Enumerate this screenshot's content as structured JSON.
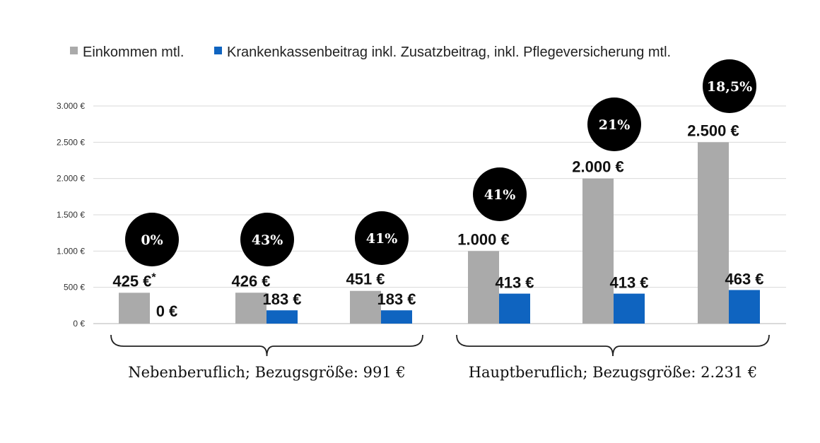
{
  "chart_data": {
    "type": "bar",
    "categories": [
      "",
      "",
      "",
      "",
      "",
      ""
    ],
    "series": [
      {
        "name": "Einkommen mtl.",
        "color": "#aaaaaa",
        "values": [
          425,
          426,
          451,
          1000,
          2000,
          2500
        ],
        "labels": [
          "425 €",
          "426 €",
          "451 €",
          "1.000 €",
          "2.000 €",
          "2.500 €"
        ]
      },
      {
        "name": "Krankenkassenbeitrag inkl. Zusatzbeitrag, inkl. Pflegeversicherung mtl.",
        "color": "#0f64c0",
        "values": [
          0,
          183,
          183,
          413,
          413,
          463
        ],
        "labels": [
          "0 €",
          "183 €",
          "183 €",
          "413 €",
          "413 €",
          "463 €"
        ]
      }
    ],
    "annotations": {
      "first_income_footnote_marker": "*",
      "percentage_bubbles": [
        "0%",
        "43%",
        "41%",
        "41%",
        "21%",
        "18,5%"
      ],
      "bubble_color": "#000000"
    },
    "groups": [
      {
        "label": "Nebenberuflich;  Bezugsgröße:  991 €",
        "categories": [
          0,
          1,
          2
        ]
      },
      {
        "label": "Hauptberuflich;  Bezugsgröße:  2.231 €",
        "categories": [
          3,
          4,
          5
        ]
      }
    ],
    "y_axis": {
      "range": [
        0,
        3000
      ],
      "ticks": [
        0,
        500,
        1000,
        1500,
        2000,
        2500,
        3000
      ],
      "tick_labels": [
        "0 €",
        "500 €",
        "1.000 €",
        "1.500 €",
        "2.000 €",
        "2.500 €",
        "3.000 €"
      ]
    },
    "grid": true,
    "legend_position": "top"
  }
}
